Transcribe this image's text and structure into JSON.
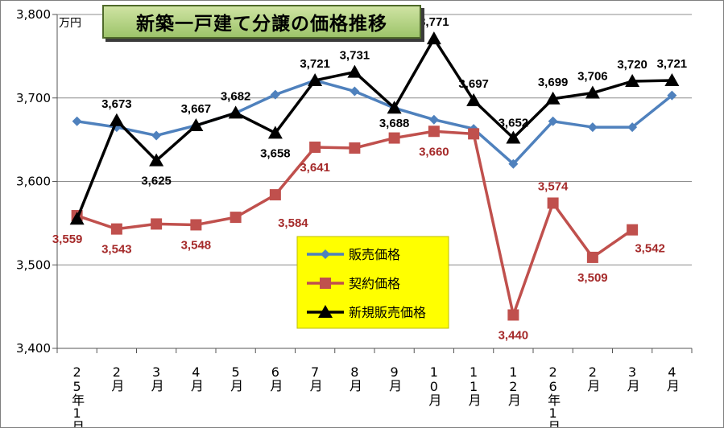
{
  "chart_data": {
    "type": "line",
    "title": "新築一戸建て分譲の価格推移",
    "unit_label": "万円",
    "ylim": [
      3400,
      3800
    ],
    "yticks": [
      3400,
      3500,
      3600,
      3700,
      3800
    ],
    "ytick_labels": [
      "3,400",
      "3,500",
      "3,600",
      "3,700",
      "3,800"
    ],
    "categories": [
      "25年1月",
      "2月",
      "3月",
      "4月",
      "5月",
      "6月",
      "7月",
      "8月",
      "9月",
      "10月",
      "11月",
      "12月",
      "26年1月",
      "2月",
      "3月",
      "4月"
    ],
    "grid": "horizontal",
    "legend_position": "bottom-center",
    "series": [
      {
        "name": "販売価格",
        "color": "#4f81bd",
        "marker": "diamond",
        "values": [
          3672,
          3665,
          3655,
          3667,
          3682,
          3704,
          3721,
          3708,
          3688,
          3674,
          3663,
          3621,
          3672,
          3665,
          3665,
          3703
        ]
      },
      {
        "name": "契約価格",
        "color": "#c0504d",
        "marker": "square",
        "values": [
          3559,
          3543,
          3549,
          3548,
          3557,
          3584,
          3641,
          3640,
          3652,
          3660,
          3657,
          3440,
          3574,
          3509,
          3542,
          null
        ],
        "data_labels": [
          "3,559",
          "3,543",
          null,
          "3,548",
          null,
          "3,584",
          "3,641",
          null,
          null,
          "3,660",
          null,
          "3,440",
          "3,574",
          "3,509",
          "3,542",
          null
        ]
      },
      {
        "name": "新規販売価格",
        "color": "#000000",
        "marker": "triangle",
        "values": [
          3555,
          3673,
          3625,
          3667,
          3682,
          3658,
          3721,
          3731,
          3688,
          3771,
          3697,
          3652,
          3699,
          3706,
          3720,
          3721
        ],
        "data_labels": [
          null,
          "3,673",
          "3,625",
          "3,667",
          "3,682",
          "3,658",
          "3,721",
          "3,731",
          "3,688",
          "3,771",
          "3,697",
          "3,652",
          "3,699",
          "3,706",
          "3,720",
          "3,721"
        ]
      }
    ]
  }
}
